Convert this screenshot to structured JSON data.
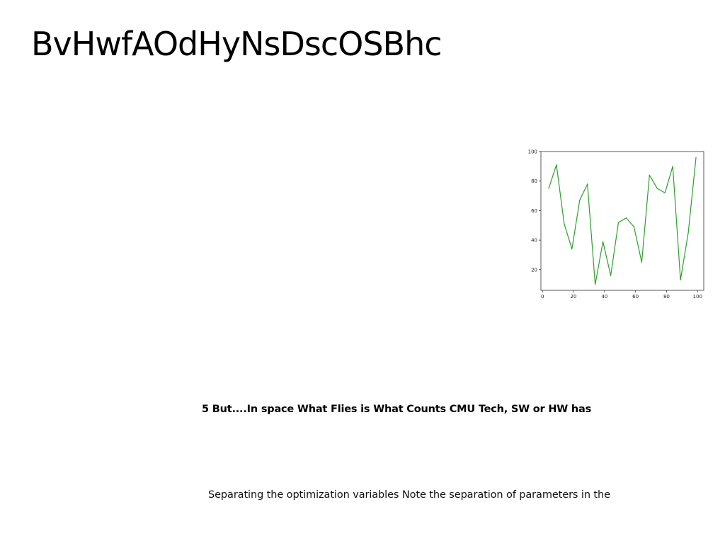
{
  "slide": {
    "title": "BvHwfAOdHyNsDscOSBhc",
    "heading": "5 But....In space What Flies is What Counts CMU Tech, SW or HW has",
    "body": "Separating the optimization variables Note the separation of parameters in the"
  },
  "colors": {
    "line": "#2ca02c",
    "axes": "#333333"
  },
  "chart_data": {
    "type": "line",
    "x": [
      4,
      9,
      14,
      19,
      24,
      29,
      34,
      39,
      44,
      49,
      54,
      59,
      64,
      69,
      74,
      79,
      84,
      89,
      94,
      99
    ],
    "values": [
      75,
      91,
      51,
      34,
      67,
      78,
      10,
      39,
      16,
      52,
      55,
      49,
      25,
      84,
      75,
      72,
      90,
      13,
      45,
      96
    ],
    "title": "",
    "xlabel": "",
    "ylabel": "",
    "xlim": [
      -1,
      104
    ],
    "ylim": [
      6,
      100
    ],
    "xticks": [
      0,
      20,
      40,
      60,
      80,
      100
    ],
    "yticks": [
      20,
      40,
      60,
      80,
      100
    ],
    "grid": false,
    "legend": "none"
  }
}
